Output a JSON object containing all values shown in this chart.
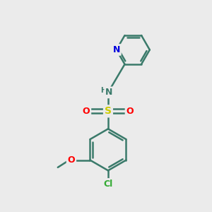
{
  "background_color": "#ebebeb",
  "bond_color": "#3a7a6a",
  "bond_width": 1.8,
  "atom_colors": {
    "N_pyridine": "#0000dd",
    "N_sulfonamide": "#3a7a6a",
    "S": "#cccc00",
    "O": "#ff0000",
    "Cl": "#33aa33",
    "O_methoxy": "#ff0000",
    "C": "#3a7a6a",
    "H": "#3a7a6a"
  }
}
